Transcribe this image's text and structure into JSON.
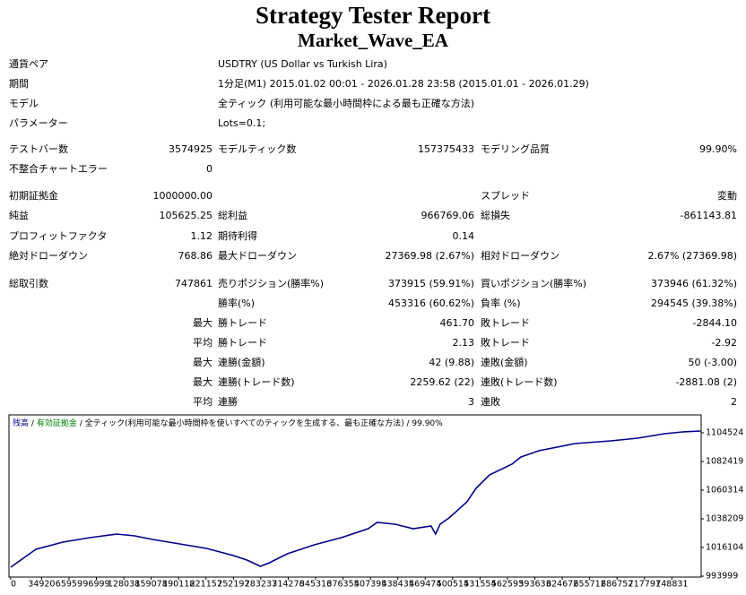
{
  "header": {
    "title": "Strategy Tester Report",
    "subtitle": "Market_Wave_EA"
  },
  "info": [
    {
      "label": "通貨ペア",
      "value": "USDTRY (US Dollar vs Turkish Lira)"
    },
    {
      "label": "期間",
      "value": "1分足(M1) 2015.01.02 00:01 - 2026.01.28 23:58 (2015.01.01 - 2026.01.29)"
    },
    {
      "label": "モデル",
      "value": "全ティック (利用可能な最小時間枠による最も正確な方法)"
    },
    {
      "label": "パラメーター",
      "value": "Lots=0.1;"
    }
  ],
  "stats": [
    [
      "テストバー数",
      "3574925",
      "モデルティック数",
      "157375433",
      "モデリング品質",
      "99.90%"
    ],
    [
      "不整合チャートエラー",
      "0",
      null,
      null,
      null,
      null
    ],
    [
      "初期証拠金",
      "1000000.00",
      null,
      null,
      "スプレッド",
      "変動"
    ],
    [
      "純益",
      "105625.25",
      "総利益",
      "966769.06",
      "総損失",
      "-861143.81"
    ],
    [
      "プロフィットファクタ",
      "1.12",
      "期待利得",
      "0.14",
      null,
      null
    ],
    [
      "絶対ドローダウン",
      "768.86",
      "最大ドローダウン",
      "27369.98 (2.67%)",
      "相対ドローダウン",
      "2.67% (27369.98)"
    ],
    [
      "総取引数",
      "747861",
      "売りポジション(勝率%)",
      "373915 (59.91%)",
      "買いポジション(勝率%)",
      "373946 (61.32%)"
    ],
    [
      null,
      null,
      "勝率(%)",
      "453316 (60.62%)",
      "負率 (%)",
      "294545 (39.38%)"
    ],
    [
      null,
      "最大",
      "勝トレード",
      "461.70",
      "敗トレード",
      "-2844.10"
    ],
    [
      null,
      "平均",
      "勝トレード",
      "2.13",
      "敗トレード",
      "-2.92"
    ],
    [
      null,
      "最大",
      "連勝(金額)",
      "42 (9.88)",
      "連敗(金額)",
      "50 (-3.00)"
    ],
    [
      null,
      "最大",
      "連勝(トレード数)",
      "2259.62 (22)",
      "連敗(トレード数)",
      "-2881.08 (2)"
    ],
    [
      null,
      "平均",
      "連勝",
      "3",
      "連敗",
      "2"
    ]
  ],
  "chart_data": {
    "type": "line",
    "separator": "/",
    "equity_label": "有効証拠金",
    "equity_color": "#008000",
    "model": "全ティック(利用可能な最小時間枠を使いすべてのティックを生成する、最も正確な方法)",
    "quality": "99.90%",
    "xlim": [
      -2000,
      782000
    ],
    "ylim": [
      992618,
      1118343
    ],
    "xticks": [
      0,
      34920,
      65959,
      96999,
      128038,
      159078,
      190118,
      221157,
      252197,
      283237,
      314276,
      345316,
      376355,
      407395,
      438435,
      469474,
      500514,
      531554,
      562593,
      593633,
      624672,
      655712,
      686752,
      717791,
      748831
    ],
    "yticks": [
      993999,
      1016104,
      1038209,
      1060314,
      1082419,
      1104524
    ],
    "x": [
      0,
      28484,
      59003,
      89522,
      120041,
      140387,
      160732,
      191251,
      221770,
      252289,
      267548,
      282808,
      292981,
      313327,
      343845,
      374364,
      404883,
      415056,
      435402,
      455748,
      476093,
      481180,
      486267,
      496439,
      516785,
      526958,
      542218,
      567650,
      577823,
      598169,
      638860,
      679552,
      710071,
      740590,
      760936,
      781282
    ],
    "series": [
      {
        "name": "残高",
        "color": "#00008b",
        "values": [
          1000907,
          1014723,
          1020249,
          1023703,
          1026467,
          1025085,
          1022322,
          1018868,
          1015414,
          1009888,
          1006433,
          1001598,
          1004361,
          1011269,
          1018177,
          1023703,
          1030611,
          1035447,
          1034065,
          1030611,
          1032684,
          1026467,
          1034065,
          1038901,
          1051335,
          1061697,
          1072059,
          1080349,
          1085875,
          1090711,
          1096237,
          1098310,
          1100382,
          1103836,
          1105218,
          1105909
        ]
      }
    ]
  }
}
